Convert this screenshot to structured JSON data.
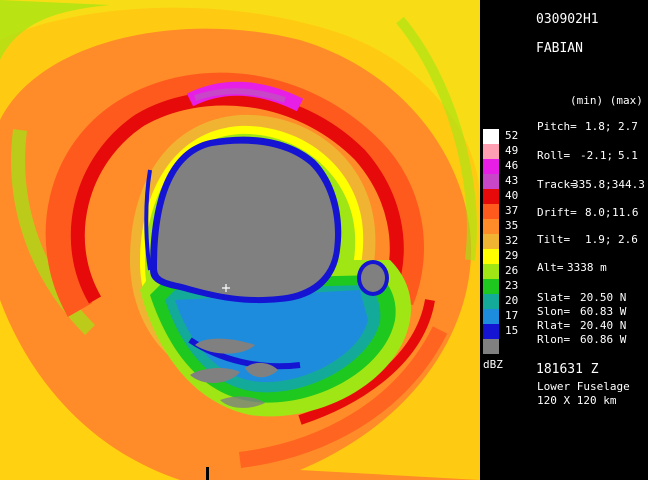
{
  "header": {
    "flight_id": "030902H1",
    "storm_name": "FABIAN"
  },
  "params": {
    "col_header": "(min) (max)",
    "pitch": {
      "label": "Pitch=",
      "min": "1.8;",
      "max": "2.7"
    },
    "roll": {
      "label": "Roll=",
      "min": "-2.1;",
      "max": "5.1"
    },
    "track": {
      "label": "Track=",
      "value": "335.8;344.3"
    },
    "drift": {
      "label": "Drift=",
      "min": "8.0;",
      "max": "11.6"
    },
    "tilt": {
      "label": "Tilt=",
      "min": "1.9;",
      "max": "2.6"
    },
    "alt": {
      "label": "Alt=",
      "value": "3338 m"
    }
  },
  "position": {
    "slat": {
      "label": "Slat=",
      "value": "20.50 N"
    },
    "slon": {
      "label": "Slon=",
      "value": "60.83 W"
    },
    "rlat": {
      "label": "Rlat=",
      "value": "20.40 N"
    },
    "rlon": {
      "label": "Rlon=",
      "value": "60.86 W"
    }
  },
  "footer": {
    "time": "181631 Z",
    "radar": "Lower Fuselage",
    "domain": "120 X 120 km"
  },
  "legend": {
    "unit": "dBZ",
    "levels": [
      {
        "label": "52",
        "color": "#ffffff"
      },
      {
        "label": "49",
        "color": "#ff9fb4"
      },
      {
        "label": "46",
        "color": "#e61ee6"
      },
      {
        "label": "43",
        "color": "#c846c8"
      },
      {
        "label": "40",
        "color": "#e60a0a"
      },
      {
        "label": "37",
        "color": "#ff5a1e"
      },
      {
        "label": "35",
        "color": "#ff8c28"
      },
      {
        "label": "32",
        "color": "#f0b432"
      },
      {
        "label": "29",
        "color": "#ffff00"
      },
      {
        "label": "26",
        "color": "#a0e614"
      },
      {
        "label": "23",
        "color": "#1ec81e"
      },
      {
        "label": "20",
        "color": "#14aa9a"
      },
      {
        "label": "17",
        "color": "#1e8cdc"
      },
      {
        "label": "15",
        "color": "#1414d2"
      },
      {
        "label": "",
        "color": "#808080"
      }
    ]
  }
}
